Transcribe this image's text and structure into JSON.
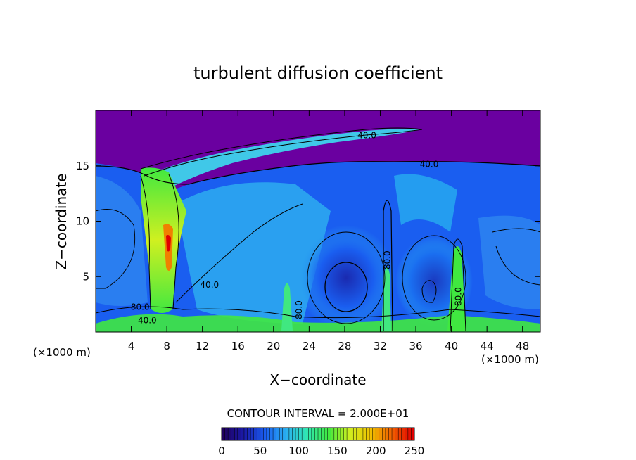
{
  "chart_data": {
    "type": "heatmap",
    "title": "turbulent diffusion coefficient",
    "xlabel": "X−coordinate",
    "ylabel": "Z−coordinate",
    "x_unit": "(×1000 m)",
    "y_unit": "(×1000 m)",
    "xlim": [
      0,
      50
    ],
    "ylim": [
      0,
      20
    ],
    "x_ticks": [
      4,
      8,
      12,
      16,
      20,
      24,
      28,
      32,
      36,
      40,
      44,
      48
    ],
    "x_tick_labels": [
      "4",
      "8",
      "12",
      "16",
      "20",
      "24",
      "28",
      "32",
      "36",
      "40",
      "44",
      "48"
    ],
    "y_ticks": [
      5,
      10,
      15
    ],
    "y_tick_labels": [
      "5",
      "10",
      "15"
    ],
    "contour_interval_text": "CONTOUR INTERVAL = 2.000E+01",
    "colorbar": {
      "min": 0,
      "max": 250,
      "ticks": [
        0,
        50,
        100,
        150,
        200,
        250
      ],
      "tick_labels": [
        "0",
        "50",
        "100",
        "150",
        "200",
        "250"
      ],
      "colors": [
        "#20005e",
        "#1a1aa8",
        "#1a5ef0",
        "#2ab0f0",
        "#30e8b0",
        "#40e840",
        "#d0f020",
        "#f0c000",
        "#f06000",
        "#e00000"
      ]
    },
    "contour_labels": [
      {
        "text": "40.0",
        "x": 12.8,
        "y": 4.0
      },
      {
        "text": "80.0",
        "x": 5.0,
        "y": 2.0
      },
      {
        "text": "40.0",
        "x": 5.8,
        "y": 0.8
      },
      {
        "text": "40.0",
        "x": 30.5,
        "y": 17.5
      },
      {
        "text": "40.0",
        "x": 37.5,
        "y": 14.9
      },
      {
        "text": "80.0",
        "x": 23.2,
        "y": 2.0
      },
      {
        "text": "80.0",
        "x": 33.1,
        "y": 6.5
      },
      {
        "text": "80.0",
        "x": 41.1,
        "y": 3.2
      }
    ],
    "regions": [
      {
        "name": "upper-layer",
        "value": 0
      },
      {
        "name": "left-cell",
        "value": 50
      },
      {
        "name": "vortex-center-1",
        "value": 30
      },
      {
        "name": "vortex-center-2",
        "value": 30
      },
      {
        "name": "right-cell",
        "value": 50
      },
      {
        "name": "central-plume",
        "value": 180
      },
      {
        "name": "plume-core",
        "value": 240
      },
      {
        "name": "surface-layer",
        "value": 120
      }
    ]
  }
}
